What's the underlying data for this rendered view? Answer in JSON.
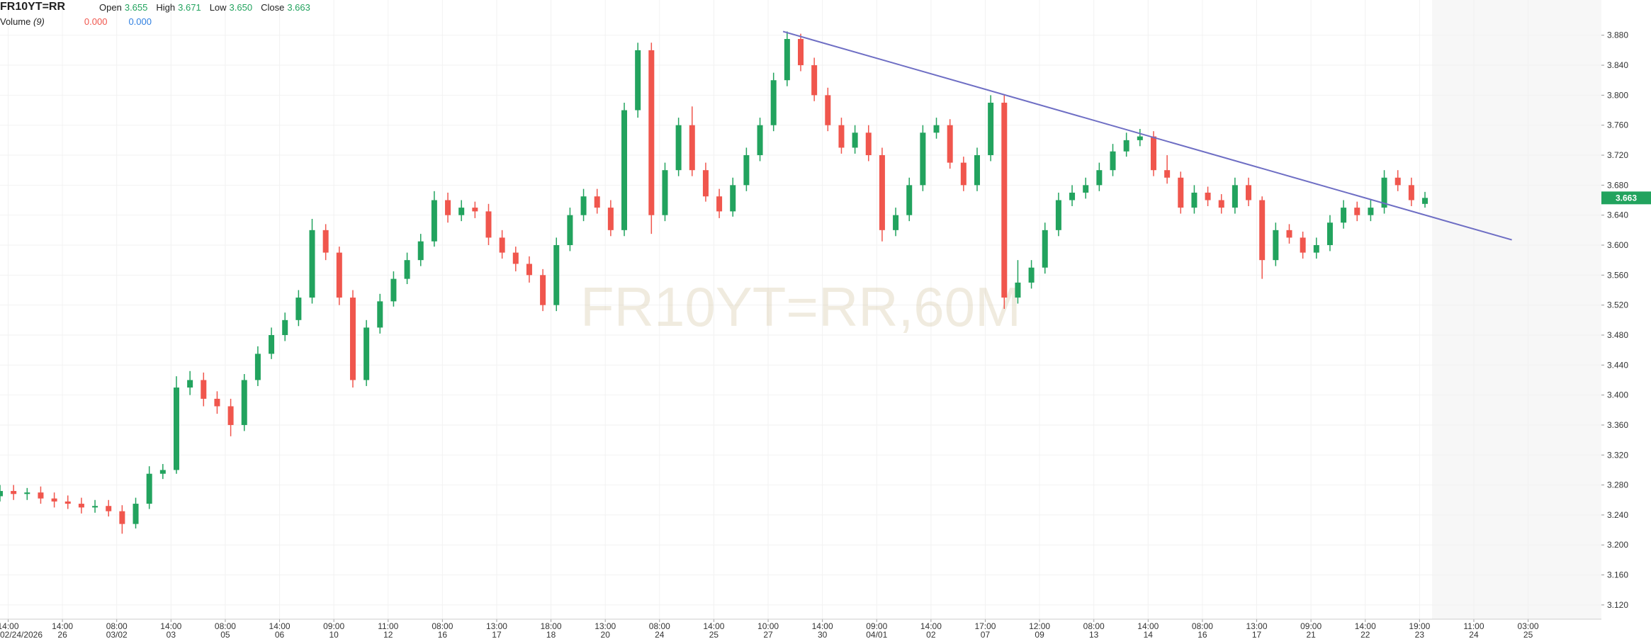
{
  "chart_data": {
    "type": "candlestick",
    "title": "FR10YT=RR",
    "watermark": "FR10YT=RR,60M",
    "ohlc_names": [
      "Open",
      "High",
      "Low",
      "Close"
    ],
    "last_value_labels": [
      "3.655",
      "3.671",
      "3.650",
      "3.663"
    ],
    "volume_label": "Volume",
    "volume_length": "(9)",
    "volume_values": [
      0,
      0
    ],
    "volume_value_labels": [
      "0.000",
      "0.000"
    ],
    "up_color": "#22a35e",
    "down_color": "#f0564d",
    "open": [
      3.265,
      3.272,
      3.268,
      3.27,
      3.262,
      3.258,
      3.255,
      3.25,
      3.252,
      3.245,
      3.228,
      3.255,
      3.295,
      3.3,
      3.41,
      3.42,
      3.395,
      3.385,
      3.36,
      3.42,
      3.455,
      3.48,
      3.5,
      3.53,
      3.62,
      3.59,
      3.53,
      3.42,
      3.49,
      3.525,
      3.555,
      3.58,
      3.605,
      3.66,
      3.64,
      3.65,
      3.645,
      3.61,
      3.59,
      3.575,
      3.56,
      3.52,
      3.6,
      3.64,
      3.665,
      3.65,
      3.62,
      3.78,
      3.86,
      3.64,
      3.7,
      3.76,
      3.7,
      3.665,
      3.645,
      3.68,
      3.72,
      3.76,
      3.82,
      3.875,
      3.84,
      3.8,
      3.76,
      3.73,
      3.75,
      3.72,
      3.62,
      3.64,
      3.68,
      3.75,
      3.76,
      3.71,
      3.68,
      3.72,
      3.79,
      3.53,
      3.55,
      3.57,
      3.62,
      3.66,
      3.67,
      3.68,
      3.7,
      3.725,
      3.74,
      3.745,
      3.7,
      3.69,
      3.65,
      3.67,
      3.66,
      3.65,
      3.68,
      3.66,
      3.58,
      3.62,
      3.61,
      3.59,
      3.6,
      3.63,
      3.65,
      3.64,
      3.65,
      3.69,
      3.68,
      3.655
    ],
    "high": [
      3.28,
      3.28,
      3.276,
      3.278,
      3.27,
      3.266,
      3.263,
      3.26,
      3.26,
      3.253,
      3.263,
      3.305,
      3.308,
      3.425,
      3.432,
      3.43,
      3.405,
      3.395,
      3.428,
      3.465,
      3.49,
      3.51,
      3.54,
      3.635,
      3.628,
      3.598,
      3.54,
      3.5,
      3.535,
      3.565,
      3.59,
      3.615,
      3.672,
      3.67,
      3.66,
      3.658,
      3.655,
      3.62,
      3.598,
      3.585,
      3.568,
      3.61,
      3.65,
      3.675,
      3.675,
      3.66,
      3.79,
      3.87,
      3.87,
      3.71,
      3.77,
      3.785,
      3.71,
      3.675,
      3.69,
      3.73,
      3.77,
      3.83,
      3.885,
      3.882,
      3.85,
      3.81,
      3.77,
      3.76,
      3.76,
      3.73,
      3.65,
      3.69,
      3.76,
      3.77,
      3.768,
      3.718,
      3.73,
      3.8,
      3.8,
      3.58,
      3.58,
      3.63,
      3.67,
      3.68,
      3.69,
      3.71,
      3.735,
      3.75,
      3.755,
      3.752,
      3.72,
      3.698,
      3.68,
      3.678,
      3.668,
      3.69,
      3.69,
      3.665,
      3.63,
      3.628,
      3.618,
      3.61,
      3.64,
      3.66,
      3.658,
      3.66,
      3.7,
      3.7,
      3.69,
      3.671
    ],
    "low": [
      3.258,
      3.26,
      3.26,
      3.255,
      3.25,
      3.248,
      3.242,
      3.243,
      3.238,
      3.215,
      3.222,
      3.248,
      3.288,
      3.295,
      3.4,
      3.385,
      3.375,
      3.345,
      3.352,
      3.412,
      3.448,
      3.472,
      3.492,
      3.522,
      3.58,
      3.52,
      3.41,
      3.412,
      3.482,
      3.518,
      3.548,
      3.572,
      3.598,
      3.63,
      3.632,
      3.636,
      3.6,
      3.582,
      3.565,
      3.55,
      3.512,
      3.512,
      3.592,
      3.632,
      3.642,
      3.612,
      3.612,
      3.77,
      3.615,
      3.632,
      3.692,
      3.692,
      3.658,
      3.636,
      3.638,
      3.672,
      3.712,
      3.752,
      3.812,
      3.832,
      3.792,
      3.752,
      3.722,
      3.722,
      3.712,
      3.605,
      3.612,
      3.632,
      3.672,
      3.742,
      3.702,
      3.672,
      3.672,
      3.712,
      3.515,
      3.522,
      3.542,
      3.562,
      3.612,
      3.652,
      3.662,
      3.672,
      3.692,
      3.718,
      3.732,
      3.692,
      3.682,
      3.642,
      3.642,
      3.652,
      3.642,
      3.642,
      3.652,
      3.555,
      3.572,
      3.602,
      3.582,
      3.582,
      3.592,
      3.622,
      3.632,
      3.632,
      3.642,
      3.672,
      3.652,
      3.65
    ],
    "close": [
      3.272,
      3.268,
      3.27,
      3.262,
      3.258,
      3.255,
      3.25,
      3.252,
      3.245,
      3.228,
      3.255,
      3.295,
      3.3,
      3.41,
      3.42,
      3.395,
      3.385,
      3.36,
      3.42,
      3.455,
      3.48,
      3.5,
      3.53,
      3.62,
      3.59,
      3.53,
      3.42,
      3.49,
      3.525,
      3.555,
      3.58,
      3.605,
      3.66,
      3.64,
      3.65,
      3.645,
      3.61,
      3.59,
      3.575,
      3.56,
      3.52,
      3.6,
      3.64,
      3.665,
      3.65,
      3.62,
      3.78,
      3.86,
      3.64,
      3.7,
      3.76,
      3.7,
      3.665,
      3.645,
      3.68,
      3.72,
      3.76,
      3.82,
      3.875,
      3.84,
      3.8,
      3.76,
      3.73,
      3.75,
      3.72,
      3.62,
      3.64,
      3.68,
      3.75,
      3.76,
      3.71,
      3.68,
      3.72,
      3.79,
      3.53,
      3.55,
      3.57,
      3.62,
      3.66,
      3.67,
      3.68,
      3.7,
      3.725,
      3.74,
      3.745,
      3.7,
      3.69,
      3.65,
      3.67,
      3.66,
      3.65,
      3.68,
      3.66,
      3.58,
      3.62,
      3.61,
      3.59,
      3.6,
      3.63,
      3.65,
      3.64,
      3.65,
      3.69,
      3.68,
      3.66,
      3.663
    ],
    "trendline": {
      "x": [
        57.7,
        111.4
      ],
      "y": [
        3.885,
        3.607
      ],
      "color": "#6e6ec4"
    },
    "xlim": [
      0,
      118
    ],
    "ylim": [
      3.101,
      3.927
    ],
    "xticks": [
      {
        "value": 0.6,
        "label": "14:00",
        "date": "02/24/2026"
      },
      {
        "value": 4.6,
        "label": "14:00",
        "date": "26"
      },
      {
        "value": 8.6,
        "label": "08:00",
        "date": "03/02"
      },
      {
        "value": 12.6,
        "label": "14:00",
        "date": "03"
      },
      {
        "value": 16.6,
        "label": "08:00",
        "date": "05"
      },
      {
        "value": 20.6,
        "label": "14:00",
        "date": "06"
      },
      {
        "value": 24.6,
        "label": "09:00",
        "date": "10"
      },
      {
        "value": 28.6,
        "label": "11:00",
        "date": "12"
      },
      {
        "value": 32.6,
        "label": "08:00",
        "date": "16"
      },
      {
        "value": 36.6,
        "label": "13:00",
        "date": "17"
      },
      {
        "value": 40.6,
        "label": "18:00",
        "date": "18"
      },
      {
        "value": 44.6,
        "label": "13:00",
        "date": "20"
      },
      {
        "value": 48.6,
        "label": "08:00",
        "date": "24"
      },
      {
        "value": 52.6,
        "label": "14:00",
        "date": "25"
      },
      {
        "value": 56.6,
        "label": "10:00",
        "date": "27"
      },
      {
        "value": 60.6,
        "label": "14:00",
        "date": "30"
      },
      {
        "value": 64.6,
        "label": "09:00",
        "date": "04/01"
      },
      {
        "value": 68.6,
        "label": "14:00",
        "date": "02"
      },
      {
        "value": 72.6,
        "label": "17:00",
        "date": "07"
      },
      {
        "value": 76.6,
        "label": "12:00",
        "date": "09"
      },
      {
        "value": 80.6,
        "label": "08:00",
        "date": "13"
      },
      {
        "value": 84.6,
        "label": "14:00",
        "date": "14"
      },
      {
        "value": 88.6,
        "label": "08:00",
        "date": "16"
      },
      {
        "value": 92.6,
        "label": "13:00",
        "date": "17"
      },
      {
        "value": 96.6,
        "label": "09:00",
        "date": "21"
      },
      {
        "value": 100.6,
        "label": "14:00",
        "date": "22"
      },
      {
        "value": 104.6,
        "label": "19:00",
        "date": "23"
      },
      {
        "value": 108.6,
        "label": "11:00",
        "date": "24"
      },
      {
        "value": 112.6,
        "label": "03:00",
        "date": "25"
      }
    ],
    "yticks": [
      {
        "value": 3.12,
        "label": "3.120"
      },
      {
        "value": 3.16,
        "label": "3.160"
      },
      {
        "value": 3.2,
        "label": "3.200"
      },
      {
        "value": 3.24,
        "label": "3.240"
      },
      {
        "value": 3.28,
        "label": "3.280"
      },
      {
        "value": 3.32,
        "label": "3.320"
      },
      {
        "value": 3.36,
        "label": "3.360"
      },
      {
        "value": 3.4,
        "label": "3.400"
      },
      {
        "value": 3.44,
        "label": "3.440"
      },
      {
        "value": 3.48,
        "label": "3.480"
      },
      {
        "value": 3.52,
        "label": "3.520"
      },
      {
        "value": 3.56,
        "label": "3.560"
      },
      {
        "value": 3.6,
        "label": "3.600"
      },
      {
        "value": 3.64,
        "label": "3.640"
      },
      {
        "value": 3.68,
        "label": "3.680"
      },
      {
        "value": 3.72,
        "label": "3.720"
      },
      {
        "value": 3.76,
        "label": "3.760"
      },
      {
        "value": 3.8,
        "label": "3.800"
      },
      {
        "value": 3.84,
        "label": "3.840"
      },
      {
        "value": 3.88,
        "label": "3.880"
      }
    ],
    "grid": true
  }
}
